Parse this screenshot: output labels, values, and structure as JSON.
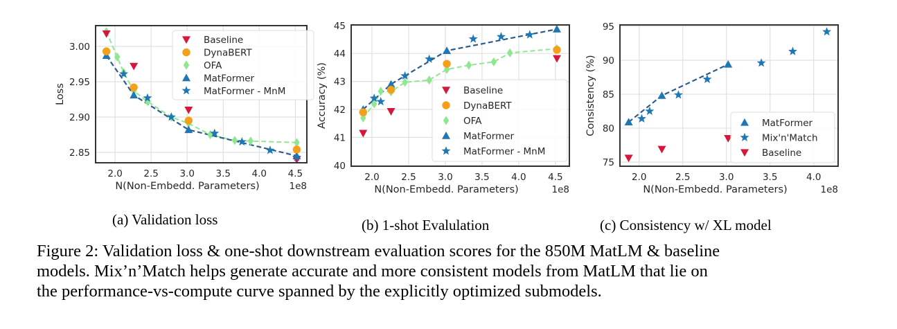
{
  "colors": {
    "baseline": "#d6173d",
    "dynabert": "#f5a01a",
    "ofa": "#8fe88f",
    "matformer": "#1f77b4",
    "matformer_line": "#2a5d8f",
    "grid": "#e0e0e0",
    "frame": "#333333"
  },
  "chart_data": [
    {
      "id": "a",
      "type": "scatter",
      "title": "",
      "subcaption": "(a) Validation loss",
      "xlabel": "N(Non-Embedd. Parameters)",
      "x_offset_label": "1e8",
      "ylabel": "Loss",
      "xlim": [
        1.73,
        4.66
      ],
      "ylim": [
        2.8353,
        3.0294
      ],
      "xticks": [
        2.0,
        2.5,
        3.0,
        3.5,
        4.0,
        4.5
      ],
      "xtick_labels": [
        "2.0",
        "2.5",
        "3.0",
        "3.5",
        "4.0",
        "4.5"
      ],
      "yticks": [
        2.85,
        2.9,
        2.95,
        3.0
      ],
      "ytick_labels": [
        "2.85",
        "2.90",
        "2.95",
        "3.00"
      ],
      "grid": true,
      "legend_position": "top-right",
      "legend": [
        "Baseline",
        "DynaBERT",
        "OFA",
        "MatFormer",
        "MatFormer - MnM"
      ],
      "series": [
        {
          "name": "OFA",
          "key": "ofa",
          "marker": "diamond",
          "line": "dashed",
          "x": [
            1.88,
            2.03,
            2.12,
            2.26,
            2.45,
            2.78,
            3.02,
            3.32,
            3.66,
            3.88,
            4.52
          ],
          "y": [
            3.021,
            2.985,
            2.963,
            2.937,
            2.922,
            2.9,
            2.891,
            2.875,
            2.867,
            2.866,
            2.864
          ]
        },
        {
          "name": "MatFormer",
          "key": "matformer",
          "marker": "triangle-up",
          "line": "dashed",
          "x": [
            1.88,
            2.26,
            3.02,
            4.52
          ],
          "y": [
            2.987,
            2.931,
            2.882,
            2.845
          ]
        },
        {
          "name": "DynaBERT",
          "key": "dynabert",
          "marker": "circle",
          "line": "none",
          "x": [
            1.88,
            2.26,
            3.02,
            4.52
          ],
          "y": [
            2.993,
            2.942,
            2.895,
            2.854
          ]
        },
        {
          "name": "Baseline",
          "key": "baseline",
          "marker": "triangle-down",
          "line": "none",
          "x": [
            1.88,
            2.26,
            3.02,
            4.52
          ],
          "y": [
            3.018,
            2.972,
            2.91,
            2.84
          ]
        },
        {
          "name": "MatFormer - MnM",
          "key": "matformer",
          "marker": "star",
          "line": "none",
          "x": [
            2.12,
            2.45,
            2.78,
            3.38,
            3.76,
            4.15,
            4.52
          ],
          "y": [
            2.961,
            2.927,
            2.9,
            2.877,
            2.865,
            2.853,
            2.843
          ]
        }
      ]
    },
    {
      "id": "b",
      "type": "scatter",
      "title": "",
      "subcaption": "(b) 1-shot Evalulation",
      "xlabel": "N(Non-Embedd. Parameters)",
      "x_offset_label": "1e8",
      "ylabel": "Accuracy (%)",
      "xlim": [
        1.717,
        4.69
      ],
      "ylim": [
        39.97,
        45.02
      ],
      "xticks": [
        2.0,
        2.5,
        3.0,
        3.5,
        4.0,
        4.5
      ],
      "xtick_labels": [
        "2.0",
        "2.5",
        "3.0",
        "3.5",
        "4.0",
        "4.5"
      ],
      "yticks": [
        40,
        41,
        42,
        43,
        44,
        45
      ],
      "ytick_labels": [
        "40",
        "41",
        "42",
        "43",
        "44",
        "45"
      ],
      "grid": true,
      "legend_position": "bottom-right",
      "legend": [
        "Baseline",
        "DynaBERT",
        "OFA",
        "MatFormer",
        "MatFormer - MnM"
      ],
      "series": [
        {
          "name": "OFA",
          "key": "ofa",
          "marker": "diamond",
          "line": "dashed",
          "x": [
            1.88,
            2.03,
            2.12,
            2.26,
            2.45,
            2.78,
            3.02,
            3.32,
            3.66,
            3.88,
            4.52
          ],
          "y": [
            41.7,
            42.2,
            42.65,
            42.63,
            42.97,
            43.05,
            43.43,
            43.58,
            43.7,
            44.02,
            44.17
          ]
        },
        {
          "name": "MatFormer",
          "key": "matformer",
          "marker": "triangle-up",
          "line": "dashed",
          "x": [
            1.88,
            2.26,
            3.02,
            4.52
          ],
          "y": [
            42.0,
            42.9,
            44.1,
            44.87
          ]
        },
        {
          "name": "DynaBERT",
          "key": "dynabert",
          "marker": "circle",
          "line": "none",
          "x": [
            1.88,
            2.26,
            3.02,
            4.52
          ],
          "y": [
            41.9,
            42.7,
            43.63,
            44.13
          ]
        },
        {
          "name": "Baseline",
          "key": "baseline",
          "marker": "triangle-down",
          "line": "none",
          "x": [
            1.88,
            2.26,
            4.52
          ],
          "y": [
            41.15,
            41.93,
            43.82
          ]
        },
        {
          "name": "MatFormer - MnM",
          "key": "matformer",
          "marker": "star",
          "line": "none",
          "x": [
            2.03,
            2.12,
            2.45,
            2.78,
            3.38,
            3.76,
            4.15
          ],
          "y": [
            42.4,
            42.28,
            43.2,
            43.8,
            44.52,
            44.6,
            44.67
          ]
        }
      ]
    },
    {
      "id": "c",
      "type": "scatter",
      "title": "",
      "subcaption": "(c) Consistency w/ XL model",
      "xlabel": "N(Non-Embedd. Parameters)",
      "x_offset_label": "1e8",
      "ylabel": "Consistency (%)",
      "xlim": [
        1.78,
        4.28
      ],
      "ylim": [
        74.4,
        95.2
      ],
      "xticks": [
        2.0,
        2.5,
        3.0,
        3.5,
        4.0
      ],
      "xtick_labels": [
        "2.0",
        "2.5",
        "3.0",
        "3.5",
        "4.0"
      ],
      "yticks": [
        75,
        80,
        85,
        90,
        95
      ],
      "ytick_labels": [
        "75",
        "80",
        "85",
        "90",
        "95"
      ],
      "grid": true,
      "legend_position": "bottom-right",
      "legend": [
        "MatFormer",
        "Mix'n'Match",
        "Baseline"
      ],
      "series": [
        {
          "name": "MatFormer",
          "key": "matformer",
          "marker": "triangle-up",
          "line": "dashed",
          "x": [
            1.88,
            2.26,
            3.02
          ],
          "y": [
            80.9,
            84.8,
            89.4
          ]
        },
        {
          "name": "Mix'n'Match",
          "key": "matformer",
          "marker": "star",
          "line": "none",
          "x": [
            2.03,
            2.12,
            2.45,
            2.78,
            3.4,
            3.76,
            4.15
          ],
          "y": [
            81.4,
            82.5,
            84.9,
            87.2,
            89.6,
            91.3,
            94.2
          ]
        },
        {
          "name": "Baseline",
          "key": "baseline",
          "marker": "triangle-down",
          "line": "none",
          "x": [
            1.88,
            2.26,
            3.02
          ],
          "y": [
            75.6,
            76.9,
            78.5
          ]
        }
      ]
    }
  ],
  "caption": {
    "lines": [
      "Figure 2: Validation loss & one-shot downstream evaluation scores for the 850M MatLM & baseline",
      "models. Mix’n’Match helps generate accurate and more consistent models from MatLM that lie on",
      "the performance-vs-compute curve spanned by the explicitly optimized submodels."
    ]
  }
}
